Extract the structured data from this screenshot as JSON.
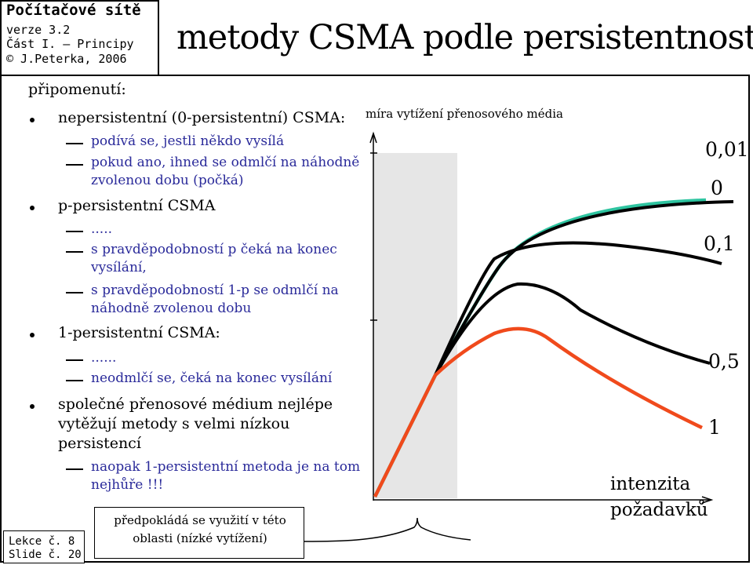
{
  "header": {
    "course": "Počítačové sítě",
    "version": "verze 3.2",
    "part": "Část I. – Principy",
    "copyright": "© J.Peterka, 2006"
  },
  "slide_title": "metody CSMA podle persistentnosti",
  "content": {
    "reminder": "připomenutí:",
    "items": [
      {
        "text": "nepersistentní (0-persistentní) CSMA:",
        "subs": [
          "podívá se, jestli někdo vysílá",
          "pokud ano, ihned se odmlčí na náhodně",
          "zvolenou dobu (počká)"
        ]
      },
      {
        "text": "p-persistentní CSMA",
        "subs": [
          ".....",
          "s pravděpodobností p čeká na konec",
          "vysílání,",
          "s pravděpodobností 1-p se odmlčí na",
          "náhodně zvolenou dobu"
        ]
      },
      {
        "text": "1-persistentní CSMA:",
        "subs": [
          "......",
          "neodmlčí se, čeká na konec vysílání"
        ]
      },
      {
        "text_lines": [
          "společné přenosové médium nejlépe",
          "vytěžují metody s velmi nízkou",
          "persistencí"
        ],
        "subs": [
          "naopak 1-persistentní metoda je na tom",
          "nejhůře !!!"
        ]
      }
    ]
  },
  "note": {
    "line1": "předpokládá se využití v této",
    "line2": "oblasti (nízké vytížení)"
  },
  "graph": {
    "y_label": "míra vytížení přenosového média",
    "x_label_1": "intenzita",
    "x_label_2": "požadavků",
    "curve_labels": [
      "0,01",
      "0",
      "0,1",
      "0,5",
      "1"
    ],
    "colors": {
      "p001": "#2ec4a0",
      "p0": "#000000",
      "p01": "#000000",
      "p05": "#000000",
      "p1": "#f04a1c",
      "shade": "#e6e6e6"
    }
  },
  "footer": {
    "lecture": "Lekce č. 8",
    "slide": "Slide č. 20"
  }
}
